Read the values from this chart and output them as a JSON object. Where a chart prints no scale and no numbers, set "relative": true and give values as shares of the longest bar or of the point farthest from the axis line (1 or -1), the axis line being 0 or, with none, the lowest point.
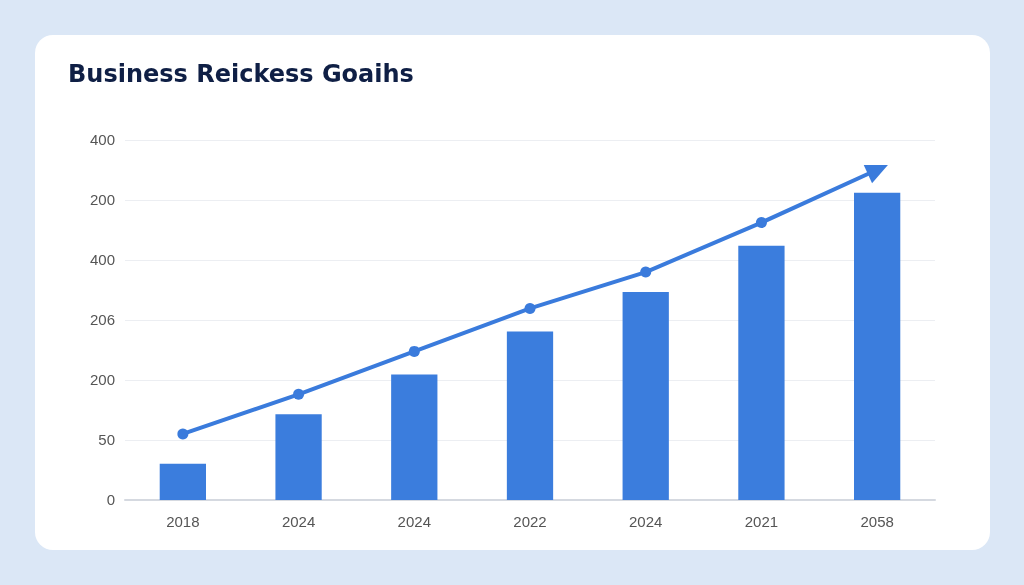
{
  "chart_data": {
    "type": "bar",
    "title": "Business Reickess Goaihs",
    "categories": [
      "2018",
      "2024",
      "2024",
      "2022",
      "2024",
      "2021",
      "2058"
    ],
    "series": [
      {
        "color": "#3b7ddd",
        "values": [
          0.11,
          0.26,
          0.38,
          0.51,
          0.63,
          0.77,
          0.93
        ]
      },
      {
        "type": "line",
        "color": "#3a7bdc",
        "values": [
          0.2,
          0.32,
          0.45,
          0.58,
          0.69,
          0.84,
          1
        ]
      }
    ],
    "relative": true,
    "annotations": [
      "400",
      "200",
      "400",
      "206",
      "200",
      "50",
      "0"
    ],
    "grid": "y",
    "marker": "circle",
    "line_style": "solid"
  }
}
